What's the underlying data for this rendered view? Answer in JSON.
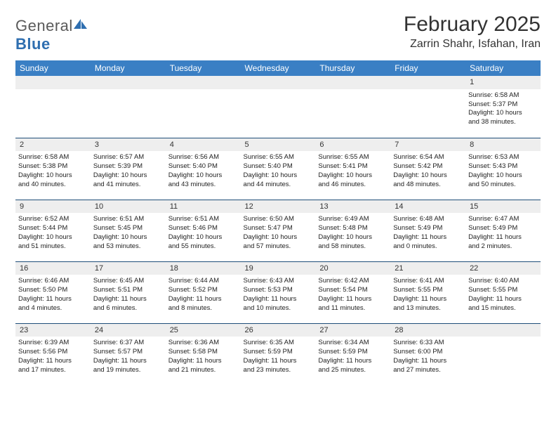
{
  "logo": {
    "text_gray": "General",
    "text_blue": "Blue"
  },
  "title": "February 2025",
  "location": "Zarrin Shahr, Isfahan, Iran",
  "colors": {
    "header_bg": "#3a7fc4",
    "header_text": "#ffffff",
    "row_divider": "#1f4e79",
    "daynum_bg": "#eeeeee",
    "body_text": "#222222",
    "logo_gray": "#5a5a5a",
    "logo_blue": "#2f6fb0"
  },
  "weekdays": [
    "Sunday",
    "Monday",
    "Tuesday",
    "Wednesday",
    "Thursday",
    "Friday",
    "Saturday"
  ],
  "weeks": [
    [
      null,
      null,
      null,
      null,
      null,
      null,
      {
        "n": "1",
        "sr": "Sunrise: 6:58 AM",
        "ss": "Sunset: 5:37 PM",
        "dl1": "Daylight: 10 hours",
        "dl2": "and 38 minutes."
      }
    ],
    [
      {
        "n": "2",
        "sr": "Sunrise: 6:58 AM",
        "ss": "Sunset: 5:38 PM",
        "dl1": "Daylight: 10 hours",
        "dl2": "and 40 minutes."
      },
      {
        "n": "3",
        "sr": "Sunrise: 6:57 AM",
        "ss": "Sunset: 5:39 PM",
        "dl1": "Daylight: 10 hours",
        "dl2": "and 41 minutes."
      },
      {
        "n": "4",
        "sr": "Sunrise: 6:56 AM",
        "ss": "Sunset: 5:40 PM",
        "dl1": "Daylight: 10 hours",
        "dl2": "and 43 minutes."
      },
      {
        "n": "5",
        "sr": "Sunrise: 6:55 AM",
        "ss": "Sunset: 5:40 PM",
        "dl1": "Daylight: 10 hours",
        "dl2": "and 44 minutes."
      },
      {
        "n": "6",
        "sr": "Sunrise: 6:55 AM",
        "ss": "Sunset: 5:41 PM",
        "dl1": "Daylight: 10 hours",
        "dl2": "and 46 minutes."
      },
      {
        "n": "7",
        "sr": "Sunrise: 6:54 AM",
        "ss": "Sunset: 5:42 PM",
        "dl1": "Daylight: 10 hours",
        "dl2": "and 48 minutes."
      },
      {
        "n": "8",
        "sr": "Sunrise: 6:53 AM",
        "ss": "Sunset: 5:43 PM",
        "dl1": "Daylight: 10 hours",
        "dl2": "and 50 minutes."
      }
    ],
    [
      {
        "n": "9",
        "sr": "Sunrise: 6:52 AM",
        "ss": "Sunset: 5:44 PM",
        "dl1": "Daylight: 10 hours",
        "dl2": "and 51 minutes."
      },
      {
        "n": "10",
        "sr": "Sunrise: 6:51 AM",
        "ss": "Sunset: 5:45 PM",
        "dl1": "Daylight: 10 hours",
        "dl2": "and 53 minutes."
      },
      {
        "n": "11",
        "sr": "Sunrise: 6:51 AM",
        "ss": "Sunset: 5:46 PM",
        "dl1": "Daylight: 10 hours",
        "dl2": "and 55 minutes."
      },
      {
        "n": "12",
        "sr": "Sunrise: 6:50 AM",
        "ss": "Sunset: 5:47 PM",
        "dl1": "Daylight: 10 hours",
        "dl2": "and 57 minutes."
      },
      {
        "n": "13",
        "sr": "Sunrise: 6:49 AM",
        "ss": "Sunset: 5:48 PM",
        "dl1": "Daylight: 10 hours",
        "dl2": "and 58 minutes."
      },
      {
        "n": "14",
        "sr": "Sunrise: 6:48 AM",
        "ss": "Sunset: 5:49 PM",
        "dl1": "Daylight: 11 hours",
        "dl2": "and 0 minutes."
      },
      {
        "n": "15",
        "sr": "Sunrise: 6:47 AM",
        "ss": "Sunset: 5:49 PM",
        "dl1": "Daylight: 11 hours",
        "dl2": "and 2 minutes."
      }
    ],
    [
      {
        "n": "16",
        "sr": "Sunrise: 6:46 AM",
        "ss": "Sunset: 5:50 PM",
        "dl1": "Daylight: 11 hours",
        "dl2": "and 4 minutes."
      },
      {
        "n": "17",
        "sr": "Sunrise: 6:45 AM",
        "ss": "Sunset: 5:51 PM",
        "dl1": "Daylight: 11 hours",
        "dl2": "and 6 minutes."
      },
      {
        "n": "18",
        "sr": "Sunrise: 6:44 AM",
        "ss": "Sunset: 5:52 PM",
        "dl1": "Daylight: 11 hours",
        "dl2": "and 8 minutes."
      },
      {
        "n": "19",
        "sr": "Sunrise: 6:43 AM",
        "ss": "Sunset: 5:53 PM",
        "dl1": "Daylight: 11 hours",
        "dl2": "and 10 minutes."
      },
      {
        "n": "20",
        "sr": "Sunrise: 6:42 AM",
        "ss": "Sunset: 5:54 PM",
        "dl1": "Daylight: 11 hours",
        "dl2": "and 11 minutes."
      },
      {
        "n": "21",
        "sr": "Sunrise: 6:41 AM",
        "ss": "Sunset: 5:55 PM",
        "dl1": "Daylight: 11 hours",
        "dl2": "and 13 minutes."
      },
      {
        "n": "22",
        "sr": "Sunrise: 6:40 AM",
        "ss": "Sunset: 5:55 PM",
        "dl1": "Daylight: 11 hours",
        "dl2": "and 15 minutes."
      }
    ],
    [
      {
        "n": "23",
        "sr": "Sunrise: 6:39 AM",
        "ss": "Sunset: 5:56 PM",
        "dl1": "Daylight: 11 hours",
        "dl2": "and 17 minutes."
      },
      {
        "n": "24",
        "sr": "Sunrise: 6:37 AM",
        "ss": "Sunset: 5:57 PM",
        "dl1": "Daylight: 11 hours",
        "dl2": "and 19 minutes."
      },
      {
        "n": "25",
        "sr": "Sunrise: 6:36 AM",
        "ss": "Sunset: 5:58 PM",
        "dl1": "Daylight: 11 hours",
        "dl2": "and 21 minutes."
      },
      {
        "n": "26",
        "sr": "Sunrise: 6:35 AM",
        "ss": "Sunset: 5:59 PM",
        "dl1": "Daylight: 11 hours",
        "dl2": "and 23 minutes."
      },
      {
        "n": "27",
        "sr": "Sunrise: 6:34 AM",
        "ss": "Sunset: 5:59 PM",
        "dl1": "Daylight: 11 hours",
        "dl2": "and 25 minutes."
      },
      {
        "n": "28",
        "sr": "Sunrise: 6:33 AM",
        "ss": "Sunset: 6:00 PM",
        "dl1": "Daylight: 11 hours",
        "dl2": "and 27 minutes."
      },
      null
    ]
  ]
}
